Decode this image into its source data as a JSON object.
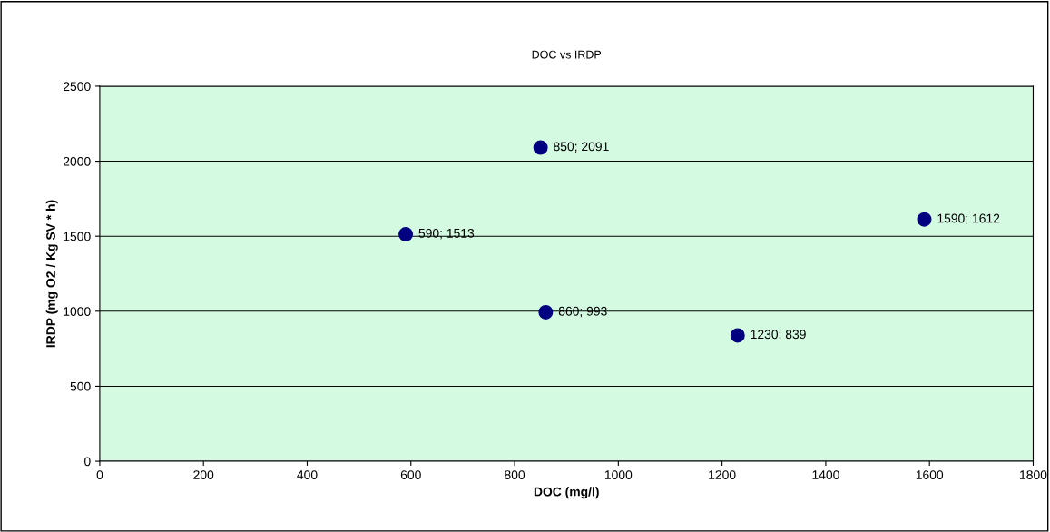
{
  "chart_data": {
    "type": "scatter",
    "title": "DOC vs IRDP",
    "xlabel": "DOC (mg/l)",
    "ylabel": "IRDP (mg O2 / Kg SV * h)",
    "series": [
      {
        "color": "#000080",
        "x": [
          850,
          590,
          860,
          1230,
          1590
        ],
        "values": [
          2091,
          1513,
          993,
          839,
          1612
        ],
        "value_labels": [
          "850; 2091",
          "590; 1513",
          "860; 993",
          "1230; 839",
          "1590; 1612"
        ]
      }
    ],
    "xlim": [
      0,
      1800
    ],
    "xticks": [
      0,
      200,
      400,
      600,
      800,
      1000,
      1200,
      1400,
      1600,
      1800
    ],
    "ylim": [
      0,
      2500
    ],
    "yticks": [
      0,
      500,
      1000,
      1500,
      2000,
      2500
    ],
    "grid": "y",
    "legend": false,
    "marker": "circle"
  }
}
